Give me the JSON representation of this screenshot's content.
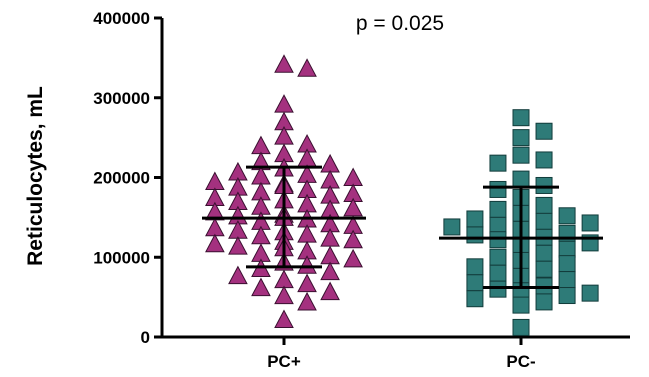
{
  "chart_data": {
    "type": "scatter",
    "title": "",
    "xlabel": "",
    "ylabel": "Reticulocytes, mL",
    "ylim": [
      0,
      400000
    ],
    "yticks": [
      "0",
      "100000",
      "200000",
      "300000",
      "400000"
    ],
    "categories": [
      "PC+",
      "PC-"
    ],
    "annotation": "p = 0.025",
    "grid": false,
    "series": [
      {
        "category": "PC+",
        "marker": "triangle",
        "color": "#a4317f",
        "mean": 149000,
        "sd_upper": 213000,
        "sd_lower": 88000,
        "values": [
          340000,
          335000,
          290000,
          268000,
          250000,
          240000,
          238000,
          228000,
          222000,
          218000,
          215000,
          210000,
          205000,
          202000,
          200000,
          198000,
          195000,
          193000,
          190000,
          188000,
          186000,
          183000,
          180000,
          178000,
          176000,
          173000,
          170000,
          168000,
          165000,
          162000,
          160000,
          158000,
          155000,
          152000,
          150000,
          148000,
          146000,
          143000,
          140000,
          138000,
          135000,
          132000,
          130000,
          127000,
          125000,
          122000,
          120000,
          118000,
          115000,
          112000,
          110000,
          106000,
          103000,
          100000,
          96000,
          92000,
          88000,
          84000,
          80000,
          75000,
          70000,
          65000,
          60000,
          55000,
          50000,
          42000,
          20000
        ]
      },
      {
        "category": "PC-",
        "marker": "square",
        "color": "#2e7b78",
        "mean": 124000,
        "sd_upper": 188000,
        "sd_lower": 62000,
        "values": [
          275000,
          258000,
          250000,
          228000,
          222000,
          218000,
          198000,
          190000,
          185000,
          175000,
          165000,
          160000,
          155000,
          152000,
          148000,
          145000,
          143000,
          140000,
          138000,
          135000,
          130000,
          128000,
          125000,
          122000,
          118000,
          115000,
          110000,
          105000,
          100000,
          96000,
          92000,
          88000,
          85000,
          80000,
          76000,
          72000,
          68000,
          64000,
          60000,
          58000,
          55000,
          52000,
          48000,
          44000,
          40000,
          12000
        ]
      }
    ]
  }
}
